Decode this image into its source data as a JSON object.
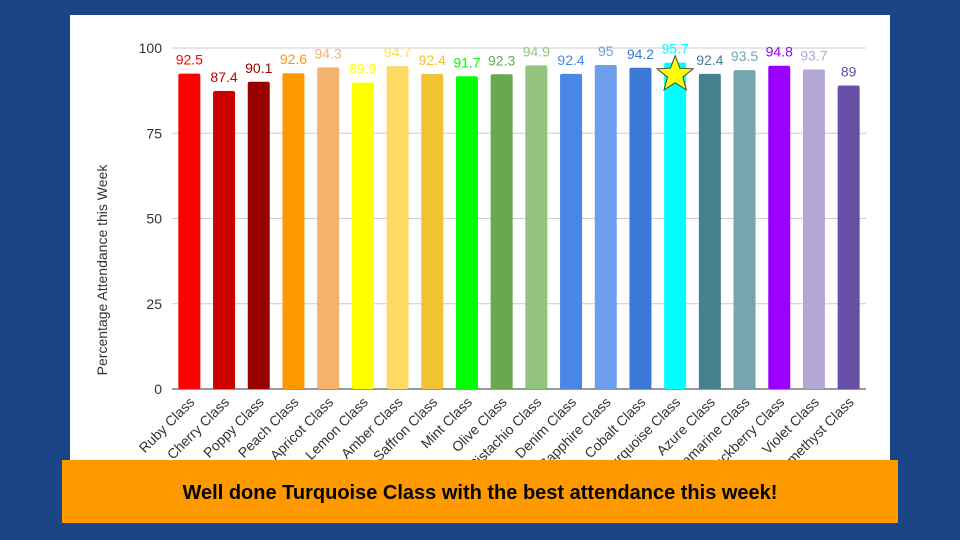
{
  "chart_data": {
    "type": "bar",
    "y_label": "Percentage Attendance this Week",
    "categories": [
      "Ruby Class",
      "Cherry Class",
      "Poppy Class",
      "Peach Class",
      "Apricot Class",
      "Lemon Class",
      "Amber Class",
      "Saffron Class",
      "Mint Class",
      "Olive Class",
      "Pistachio Class",
      "Denim Class",
      "Sapphire Class",
      "Cobalt Class",
      "Turquoise Class",
      "Azure Class",
      "Aquamarine Class",
      "Blackberry Class",
      "Violet Class",
      "Amethyst Class"
    ],
    "values": [
      92.5,
      87.4,
      90.1,
      92.6,
      94.3,
      89.9,
      94.7,
      92.4,
      91.7,
      92.3,
      94.9,
      92.4,
      95,
      94.2,
      95.7,
      92.4,
      93.5,
      94.8,
      93.7,
      89
    ],
    "colors": [
      "#ff0000",
      "#cc0000",
      "#990000",
      "#ff9900",
      "#f6b26b",
      "#ffff00",
      "#ffd966",
      "#f1c232",
      "#00ff00",
      "#6aa84f",
      "#93c47d",
      "#4a86e8",
      "#6d9eeb",
      "#3c78d8",
      "#00ffff",
      "#45818e",
      "#76a5af",
      "#9900ff",
      "#b4a7d6",
      "#674ea7"
    ],
    "ylim": [
      0,
      100
    ],
    "yticks": [
      0,
      25,
      50,
      75,
      100
    ],
    "grid": true,
    "banner": "Well done Turquoise Class with the best attendance this week!"
  }
}
